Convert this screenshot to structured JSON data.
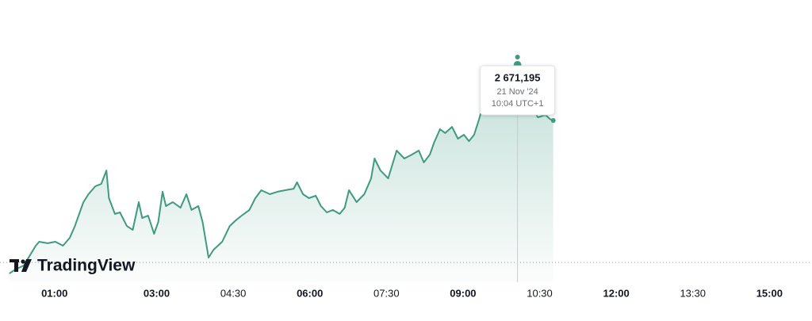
{
  "chart_data": {
    "type": "area",
    "logo": "TradingView",
    "color": "#3f9a80",
    "x": [
      7,
      14,
      24,
      38,
      42,
      52,
      61,
      70,
      78,
      84,
      94,
      100,
      108,
      115,
      121,
      124,
      131,
      137,
      145,
      152,
      159,
      163,
      170,
      177,
      182,
      187,
      191,
      199,
      208,
      215,
      221,
      229,
      234,
      241,
      247,
      257,
      266,
      273,
      280,
      289,
      296,
      303,
      313,
      322,
      331,
      341,
      345,
      352,
      359,
      367,
      373,
      380,
      387,
      395,
      401,
      406,
      415,
      424,
      432,
      436,
      443,
      452,
      462,
      471,
      480,
      488,
      494,
      501,
      506,
      513,
      519,
      527,
      534,
      541,
      547,
      553,
      559,
      564,
      574,
      585,
      594,
      604,
      611,
      620,
      628,
      637,
      642,
      646
    ],
    "values": [
      2546.8,
      2549.9,
      2553.1,
      2568.6,
      2571.7,
      2570.5,
      2571.7,
      2568.6,
      2574.8,
      2584.1,
      2602.8,
      2609.0,
      2615.2,
      2617.1,
      2627.6,
      2605.9,
      2593.5,
      2594.7,
      2584.1,
      2581.0,
      2602.8,
      2590.3,
      2592.2,
      2577.9,
      2587.2,
      2610.9,
      2599.7,
      2602.8,
      2598.4,
      2609.0,
      2596.6,
      2599.7,
      2587.2,
      2559.3,
      2565.5,
      2571.7,
      2584.1,
      2588.5,
      2592.2,
      2596.6,
      2605.9,
      2612.1,
      2609.0,
      2610.9,
      2612.1,
      2613.3,
      2618.3,
      2609.0,
      2605.9,
      2607.8,
      2599.7,
      2594.7,
      2596.6,
      2593.5,
      2598.4,
      2612.1,
      2602.8,
      2609.0,
      2621.4,
      2637.0,
      2627.6,
      2621.4,
      2643.2,
      2637.0,
      2640.1,
      2643.2,
      2633.9,
      2640.1,
      2649.4,
      2660.0,
      2656.9,
      2661.8,
      2652.5,
      2655.6,
      2650.6,
      2655.6,
      2668.0,
      2680.5,
      2686.7,
      2677.4,
      2674.3,
      2671.195,
      2674.3,
      2677.4,
      2669.3,
      2671.2,
      2668.0,
      2666.8
    ],
    "baseline": 2555.5,
    "xlim": [
      -4,
      950
    ],
    "ylim": [
      2540,
      2724
    ],
    "xticks": [
      {
        "value": 60,
        "label": "01:00"
      },
      {
        "value": 180,
        "label": "03:00"
      },
      {
        "value": 270,
        "label": "04:30"
      },
      {
        "value": 360,
        "label": "06:00"
      },
      {
        "value": 450,
        "label": "07:30"
      },
      {
        "value": 540,
        "label": "09:00"
      },
      {
        "value": 630,
        "label": "10:30"
      },
      {
        "value": 720,
        "label": "12:00"
      },
      {
        "value": 810,
        "label": "13:30"
      },
      {
        "value": 900,
        "label": "15:00"
      }
    ],
    "tooltip": {
      "x": 604,
      "value": 2671.195,
      "value_label": "2 671,195",
      "date": "21 Nov '24",
      "time": "10:04 UTC+1"
    }
  }
}
